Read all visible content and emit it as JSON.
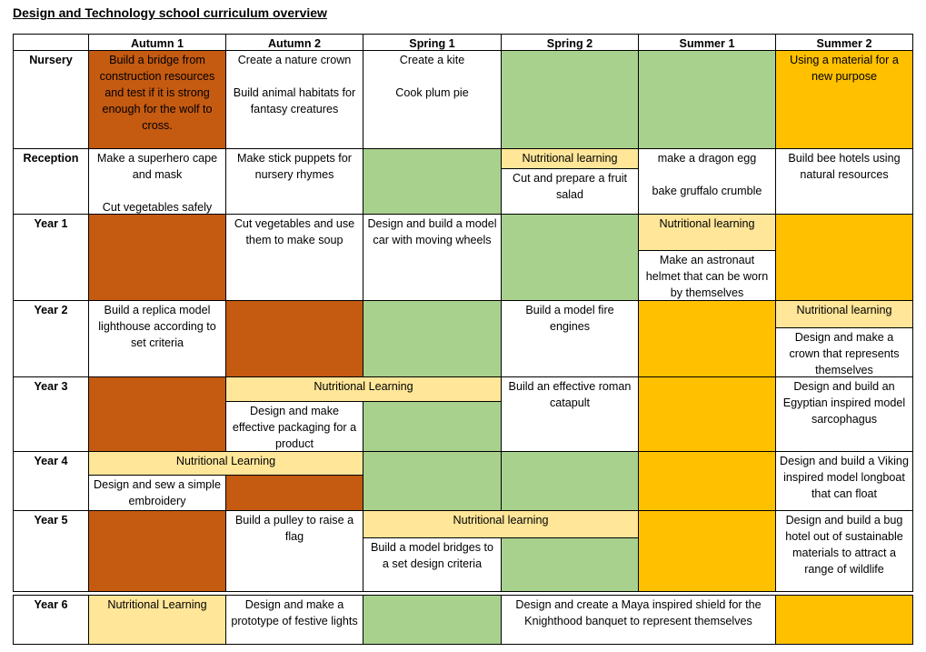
{
  "title": "Design and Technology school curriculum overview",
  "terms": [
    "Autumn 1",
    "Autumn 2",
    "Spring 1",
    "Spring 2",
    "Summer 1",
    "Summer 2"
  ],
  "colors": {
    "construction": "#c55a11",
    "green": "#a9d18e",
    "orange": "#ffc000",
    "nutritional": "#ffe699"
  },
  "rows": {
    "nursery": {
      "label": "Nursery",
      "autumn1": "Build a bridge from construction resources and test if it is strong enough for the wolf to cross.",
      "autumn2_a": "Create a nature crown",
      "autumn2_b": "Build animal habitats for fantasy creatures",
      "spring1_a": "Create a kite",
      "spring1_b": "Cook plum pie",
      "summer2": "Using a material for a new purpose"
    },
    "reception": {
      "label": "Reception",
      "autumn1_a": "Make a superhero cape and mask",
      "autumn1_b": "Cut vegetables safely",
      "autumn2": "Make stick puppets for nursery rhymes",
      "spring2_banner": "Nutritional learning",
      "spring2": "Cut and prepare a fruit salad",
      "summer1_a": "make a dragon egg",
      "summer1_b": "bake gruffalo crumble",
      "summer2": "Build bee hotels using natural resources"
    },
    "year1": {
      "label": "Year 1",
      "autumn2": "Cut vegetables and use them to make soup",
      "spring1": "Design and build a model car with moving wheels",
      "summer1_banner": "Nutritional learning",
      "summer1": "Make an astronaut helmet that can be worn by themselves"
    },
    "year2": {
      "label": "Year 2",
      "autumn1": "Build a replica model lighthouse according to set criteria",
      "spring2": "Build a model fire engines",
      "summer2_banner": "Nutritional learning",
      "summer2": "Design and make a crown that represents themselves"
    },
    "year3": {
      "label": "Year 3",
      "banner": "Nutritional Learning",
      "autumn2": "Design and make effective packaging for a product",
      "spring2": "Build an effective roman catapult",
      "summer2": "Design and build an Egyptian inspired model sarcophagus"
    },
    "year4": {
      "label": "Year 4",
      "banner": "Nutritional Learning",
      "autumn1": "Design and sew a simple embroidery",
      "summer2": "Design and build a Viking inspired model longboat that can float"
    },
    "year5": {
      "label": "Year 5",
      "autumn2": "Build a pulley to raise a flag",
      "banner": "Nutritional learning",
      "spring1": "Build a model bridges to a set design criteria",
      "summer2": "Design and build a bug hotel out of sustainable materials to attract a range of wildlife"
    },
    "year6": {
      "label": "Year 6",
      "autumn1": "Nutritional Learning",
      "autumn2": "Design and make a prototype of festive lights",
      "spring2_summer1": "Design and create a Maya inspired shield for the Knighthood banquet to represent themselves"
    }
  }
}
